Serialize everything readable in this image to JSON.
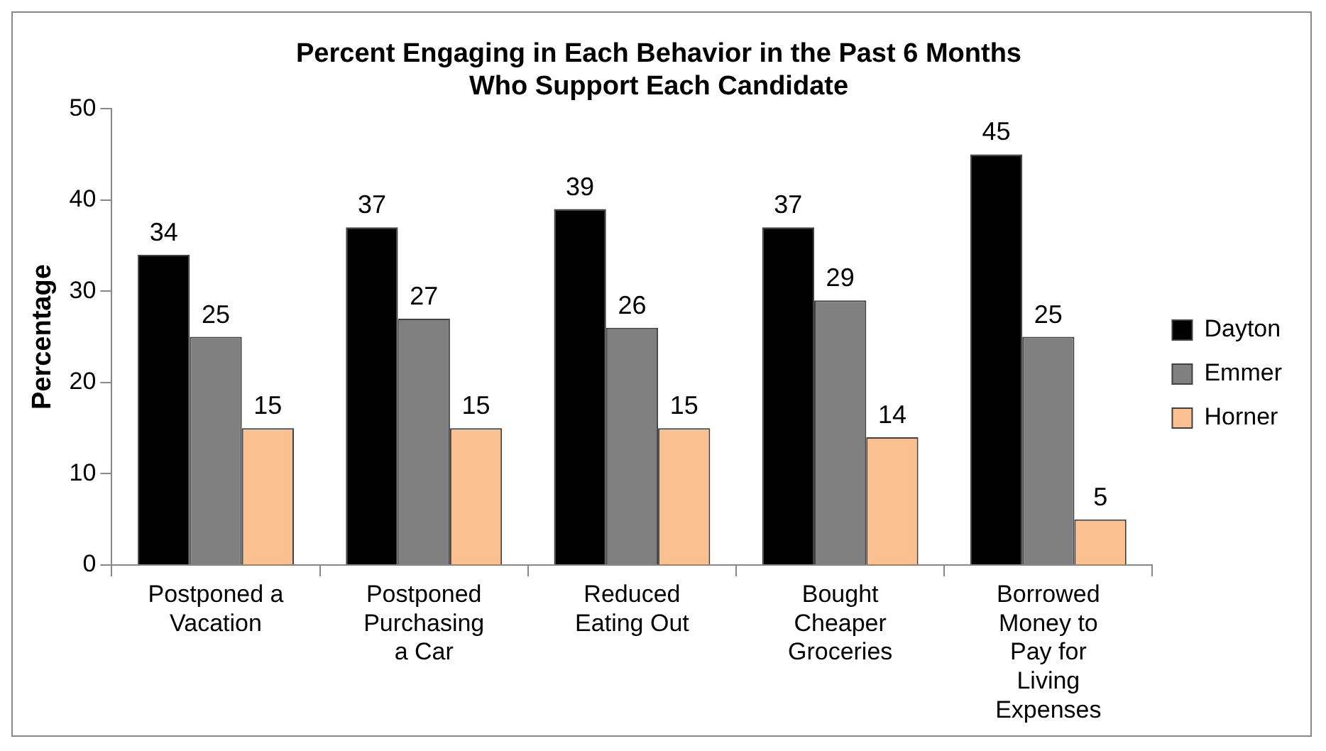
{
  "chart_data": {
    "type": "bar",
    "title": "Percent Engaging in Each Behavior in the Past 6 Months Who Support Each Candidate",
    "ylabel": "Percentage",
    "categories": [
      "Postponed a Vacation",
      "Postponed Purchasing a Car",
      "Reduced Eating Out",
      "Bought Cheaper Groceries",
      "Borrowed Money to Pay for Living Expenses"
    ],
    "series": [
      {
        "name": "Dayton",
        "color": "#000000",
        "values": [
          34,
          37,
          39,
          37,
          45
        ]
      },
      {
        "name": "Emmer",
        "color": "#808080",
        "values": [
          25,
          27,
          26,
          29,
          25
        ]
      },
      {
        "name": "Horner",
        "color": "#fac090",
        "values": [
          15,
          15,
          15,
          14,
          5
        ]
      }
    ],
    "ylim": [
      0,
      50
    ],
    "yticks": [
      0,
      10,
      20,
      30,
      40,
      50
    ],
    "grid": false,
    "legend": "right",
    "data_labels": true
  }
}
